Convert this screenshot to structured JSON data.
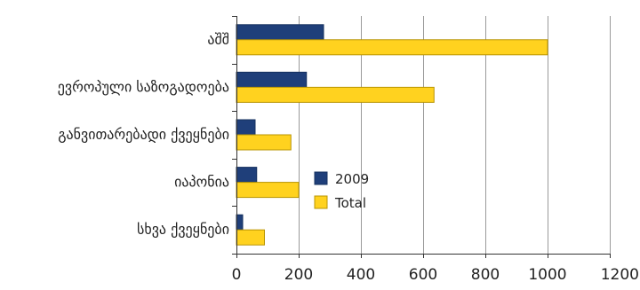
{
  "chart_data": {
    "type": "bar",
    "orientation": "horizontal",
    "categories": [
      "აშშ",
      "ევროპული საზოგადოება",
      "განვითარებადი ქვეყნები",
      "იაპონია",
      "სხვა ქვეყნები"
    ],
    "series": [
      {
        "name": "2009",
        "values": [
          280,
          225,
          60,
          65,
          20
        ],
        "color": "#1f3f7a",
        "stroke": "#15305f"
      },
      {
        "name": "Total",
        "values": [
          1000,
          635,
          175,
          200,
          90
        ],
        "color": "#ffd21f",
        "stroke": "#b89400"
      }
    ],
    "xlim": [
      0,
      1200
    ],
    "xticks": [
      0,
      200,
      400,
      600,
      800,
      1000,
      1200
    ],
    "grid": "vertical",
    "legend": "center-right"
  }
}
